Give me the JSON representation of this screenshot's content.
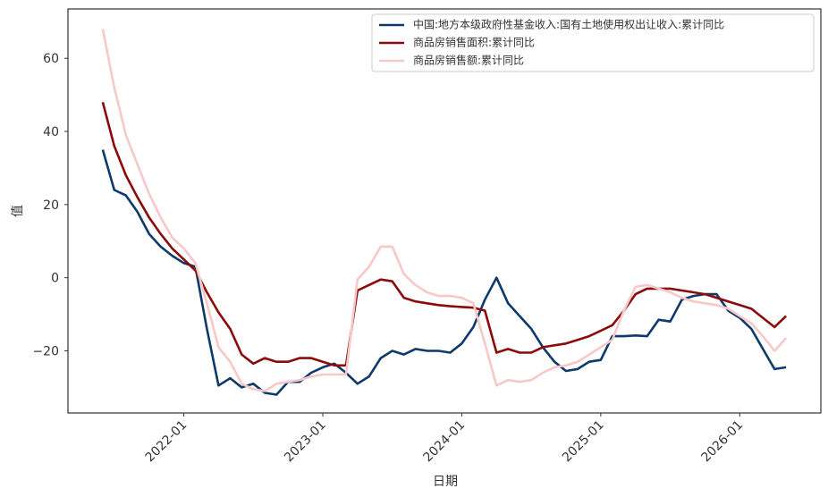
{
  "chart_data": {
    "type": "line",
    "xlabel": "日期",
    "ylabel": "值",
    "x": [
      "2021-06",
      "2021-07",
      "2021-08",
      "2021-09",
      "2021-10",
      "2021-11",
      "2021-12",
      "2022-01",
      "2022-02",
      "2022-03",
      "2022-04",
      "2022-05",
      "2022-06",
      "2022-07",
      "2022-08",
      "2022-09",
      "2022-10",
      "2022-11",
      "2022-12",
      "2023-01",
      "2023-02",
      "2023-03",
      "2023-04",
      "2023-05",
      "2023-06",
      "2023-07",
      "2023-08",
      "2023-09",
      "2023-10",
      "2023-11",
      "2023-12",
      "2024-01",
      "2024-02",
      "2024-03",
      "2024-04",
      "2024-05",
      "2024-06",
      "2024-07",
      "2024-08",
      "2024-09",
      "2024-10",
      "2024-11",
      "2024-12",
      "2025-01",
      "2025-02",
      "2025-03",
      "2025-04",
      "2025-05",
      "2025-06",
      "2025-07",
      "2025-08",
      "2025-09",
      "2025-10",
      "2025-11",
      "2025-12",
      "2026-01",
      "2026-02",
      "2026-03",
      "2026-04",
      "2026-05"
    ],
    "series": [
      {
        "name": "中国:地方本级政府性基金收入:国有土地使用权出让收入:累计同比",
        "color": "#0d3a6b",
        "values": [
          35,
          24,
          22.5,
          18,
          12,
          8.5,
          6,
          4,
          3,
          -14,
          -29.5,
          -27.5,
          -30,
          -29,
          -31.5,
          -32,
          -28.5,
          -28.5,
          -26,
          -24.5,
          -23.5,
          -26,
          -29,
          -27,
          -22,
          -20,
          -21,
          -19.5,
          -20,
          -20,
          -20.5,
          -18,
          -13.5,
          -6,
          0,
          -7,
          -10.5,
          -14,
          -19,
          -23,
          -25.5,
          -25,
          -23,
          -22.5,
          -16,
          -16,
          -15.8,
          -16,
          -11.5,
          -12,
          -6,
          -5,
          -4.5,
          -4.5,
          -9,
          -11,
          -14,
          -19.5,
          -25,
          -24.5
        ]
      },
      {
        "name": "商品房销售面积:累计同比",
        "color": "#8b0a0a",
        "values": [
          48,
          36,
          28,
          22,
          16.5,
          12,
          8,
          5,
          2,
          -4,
          -9.5,
          -14,
          -21,
          -23.5,
          -22,
          -23,
          -23,
          -22,
          -22,
          -23,
          -24,
          -24,
          -3.5,
          -2,
          -0.5,
          -1,
          -5.5,
          -6.5,
          -7,
          -7.5,
          -7.8,
          -8,
          -8.2,
          -9,
          -20.5,
          -19.5,
          -20.5,
          -20.5,
          -19,
          -18.5,
          -18,
          -17,
          -16,
          -14.5,
          -13,
          -9,
          -4.5,
          -3,
          -3,
          -3,
          -3.5,
          -4,
          -4.5,
          -5.5,
          -6.5,
          -7.5,
          -8.5,
          -11,
          -13.5,
          -10.5
        ]
      },
      {
        "name": "商品房销售额:累计同比",
        "color": "#f8c8c8",
        "values": [
          68,
          52,
          39,
          31,
          23,
          16.5,
          11,
          8,
          4,
          -7,
          -19,
          -23,
          -29,
          -30.5,
          -31,
          -29,
          -28.5,
          -28,
          -27,
          -26.5,
          -26.5,
          -26.5,
          -0.5,
          3,
          8.5,
          8.5,
          1,
          -2,
          -4,
          -5,
          -5,
          -5.5,
          -7,
          -18,
          -29.5,
          -28,
          -28.5,
          -28,
          -26,
          -24.5,
          -24,
          -23,
          -21,
          -19,
          -17,
          -9,
          -2.5,
          -2,
          -3,
          -4,
          -5.5,
          -6.5,
          -7,
          -7.5,
          -8.5,
          -10.5,
          -12.5,
          -16,
          -20,
          -16.5
        ]
      }
    ],
    "xlim": [
      "2021-03",
      "2026-08"
    ],
    "xticks": [
      "2022-01",
      "2023-01",
      "2024-01",
      "2025-01",
      "2026-01"
    ],
    "ylim": [
      -37,
      73.5
    ],
    "yticks": [
      {
        "value": -20,
        "label": "−20"
      },
      0,
      20,
      40,
      60
    ],
    "grid": false,
    "legend": "upper right"
  }
}
